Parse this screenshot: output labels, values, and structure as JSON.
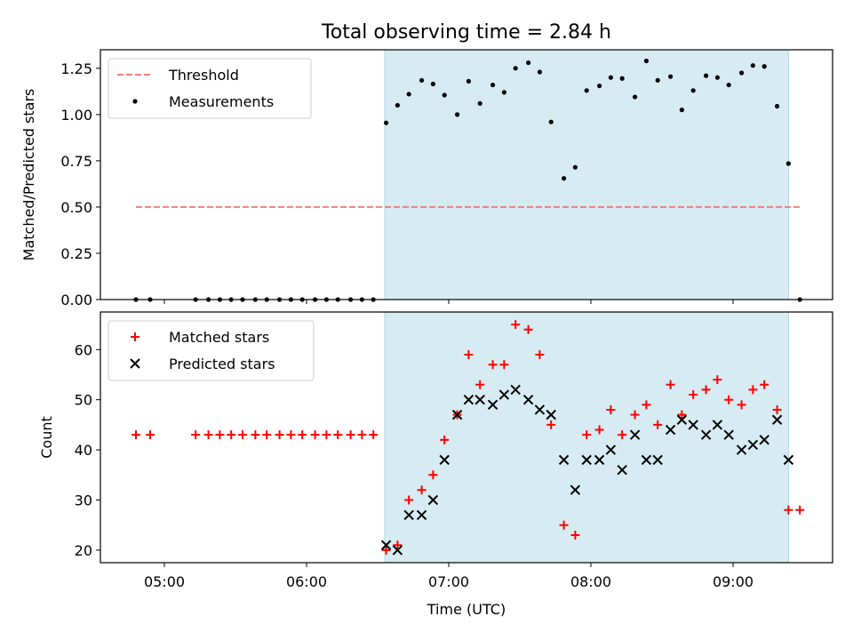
{
  "figure": {
    "title": "Total observing time = 2.84 h"
  },
  "chart_data": [
    {
      "type": "scatter",
      "title": "Total observing time = 2.84 h",
      "xlabel": "",
      "ylabel": "Matched/Predicted stars",
      "xlim_hours": [
        4.55,
        9.7
      ],
      "ylim": [
        0,
        1.35
      ],
      "yticks": [
        0,
        0.25,
        0.5,
        0.75,
        1.0,
        1.25
      ],
      "ytick_labels": [
        "0.00",
        "0.25",
        "0.50",
        "0.75",
        "1.00",
        "1.25"
      ],
      "shaded_interval_hours": [
        6.55,
        9.39
      ],
      "legend": {
        "position": "top-left",
        "entries": [
          "Threshold",
          "Measurements"
        ]
      },
      "threshold": {
        "name": "Threshold",
        "y": 0.5,
        "x_range_hours": [
          4.8,
          9.47
        ],
        "color": "#f08080"
      },
      "series": [
        {
          "name": "Measurements",
          "color": "#000000",
          "x_hours": [
            4.8,
            4.9,
            5.22,
            5.31,
            5.39,
            5.47,
            5.55,
            5.64,
            5.72,
            5.81,
            5.89,
            5.97,
            6.06,
            6.14,
            6.22,
            6.31,
            6.39,
            6.47,
            6.56,
            6.64,
            6.72,
            6.81,
            6.89,
            6.97,
            7.06,
            7.14,
            7.22,
            7.31,
            7.39,
            7.47,
            7.56,
            7.64,
            7.72,
            7.81,
            7.89,
            7.97,
            8.06,
            8.14,
            8.22,
            8.31,
            8.39,
            8.47,
            8.56,
            8.64,
            8.72,
            8.81,
            8.89,
            8.97,
            9.06,
            9.14,
            9.22,
            9.31,
            9.39,
            9.47
          ],
          "y": [
            0,
            0,
            0,
            0,
            0,
            0,
            0,
            0,
            0,
            0,
            0,
            0,
            0,
            0,
            0,
            0,
            0,
            0,
            0.955,
            1.05,
            1.11,
            1.185,
            1.165,
            1.105,
            1.0,
            1.18,
            1.06,
            1.16,
            1.12,
            1.25,
            1.28,
            1.23,
            0.96,
            0.655,
            0.715,
            1.13,
            1.155,
            1.2,
            1.195,
            1.095,
            1.29,
            1.185,
            1.205,
            1.025,
            1.13,
            1.21,
            1.2,
            1.16,
            1.225,
            1.265,
            1.26,
            1.045,
            0.735,
            0
          ]
        }
      ]
    },
    {
      "type": "scatter",
      "title": "",
      "xlabel": "Time (UTC)",
      "ylabel": "Count",
      "xlim_hours": [
        4.55,
        9.7
      ],
      "ylim": [
        17.5,
        67.5
      ],
      "yticks": [
        20,
        30,
        40,
        50,
        60
      ],
      "ytick_labels": [
        "20",
        "30",
        "40",
        "50",
        "60"
      ],
      "xticks_hours": [
        5,
        6,
        7,
        8,
        9
      ],
      "xtick_labels": [
        "05:00",
        "06:00",
        "07:00",
        "08:00",
        "09:00"
      ],
      "shaded_interval_hours": [
        6.55,
        9.39
      ],
      "legend": {
        "position": "top-left",
        "entries": [
          "Matched stars",
          "Predicted stars"
        ]
      },
      "series": [
        {
          "name": "Matched stars",
          "marker": "plus",
          "color": "#ff0000",
          "x_hours": [
            4.8,
            4.9,
            5.22,
            5.31,
            5.39,
            5.47,
            5.55,
            5.64,
            5.72,
            5.81,
            5.89,
            5.97,
            6.06,
            6.14,
            6.22,
            6.31,
            6.39,
            6.47,
            6.56,
            6.64,
            6.72,
            6.81,
            6.89,
            6.97,
            7.06,
            7.14,
            7.22,
            7.31,
            7.39,
            7.47,
            7.56,
            7.64,
            7.72,
            7.81,
            7.89,
            7.97,
            8.06,
            8.14,
            8.22,
            8.31,
            8.39,
            8.47,
            8.56,
            8.64,
            8.72,
            8.81,
            8.89,
            8.97,
            9.06,
            9.14,
            9.22,
            9.31,
            9.39,
            9.47
          ],
          "y": [
            43,
            43,
            43,
            43,
            43,
            43,
            43,
            43,
            43,
            43,
            43,
            43,
            43,
            43,
            43,
            43,
            43,
            43,
            20,
            21,
            30,
            32,
            35,
            42,
            47,
            59,
            53,
            57,
            57,
            65,
            64,
            59,
            45,
            25,
            23,
            43,
            44,
            48,
            43,
            47,
            49,
            45,
            53,
            47,
            51,
            52,
            54,
            50,
            49,
            52,
            53,
            48,
            28,
            28
          ]
        },
        {
          "name": "Predicted stars",
          "marker": "x",
          "color": "#000000",
          "x_hours": [
            6.56,
            6.64,
            6.72,
            6.81,
            6.89,
            6.97,
            7.06,
            7.14,
            7.22,
            7.31,
            7.39,
            7.47,
            7.56,
            7.64,
            7.72,
            7.81,
            7.89,
            7.97,
            8.06,
            8.14,
            8.22,
            8.31,
            8.39,
            8.47,
            8.56,
            8.64,
            8.72,
            8.81,
            8.89,
            8.97,
            9.06,
            9.14,
            9.22,
            9.31,
            9.39
          ],
          "y": [
            21,
            20,
            27,
            27,
            30,
            38,
            47,
            50,
            50,
            49,
            51,
            52,
            50,
            48,
            47,
            38,
            32,
            38,
            38,
            40,
            36,
            43,
            38,
            38,
            44,
            46,
            45,
            43,
            45,
            43,
            40,
            41,
            42,
            46,
            38
          ]
        }
      ]
    }
  ]
}
